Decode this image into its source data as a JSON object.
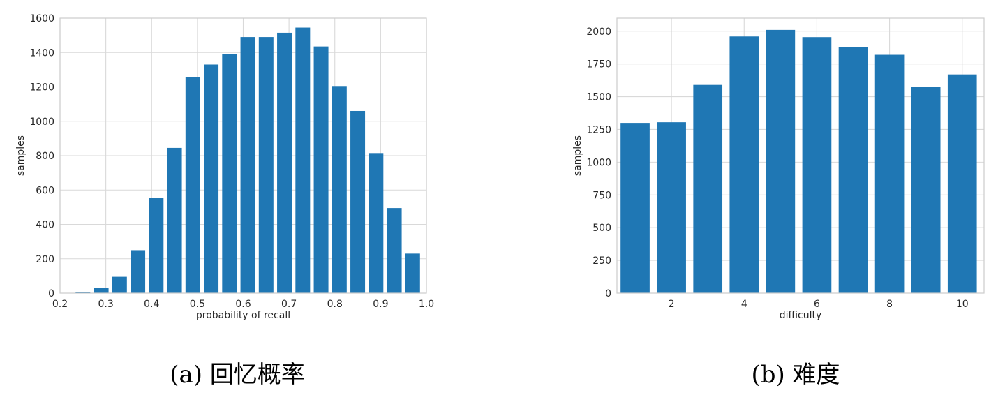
{
  "chart_data": [
    {
      "type": "bar",
      "xlabel": "probability of recall",
      "ylabel": "samples",
      "caption": "(a) 回忆概率",
      "xlim": [
        0.2,
        1.0
      ],
      "ylim": [
        0,
        1600
      ],
      "xticks": [
        "0.2",
        "0.3",
        "0.4",
        "0.5",
        "0.6",
        "0.7",
        "0.8",
        "0.9",
        "1.0"
      ],
      "yticks": [
        "0",
        "200",
        "400",
        "600",
        "800",
        "1000",
        "1200",
        "1400",
        "1600"
      ],
      "bar_width": 0.032,
      "x": [
        0.23,
        0.25,
        0.29,
        0.33,
        0.37,
        0.41,
        0.45,
        0.49,
        0.53,
        0.57,
        0.61,
        0.65,
        0.69,
        0.73,
        0.77,
        0.81,
        0.85,
        0.89,
        0.93,
        0.97
      ],
      "values": [
        2,
        5,
        30,
        95,
        250,
        555,
        845,
        1255,
        1330,
        1390,
        1490,
        1490,
        1515,
        1545,
        1435,
        1205,
        1060,
        815,
        495,
        230
      ],
      "grid": true,
      "color": "#1f77b4"
    },
    {
      "type": "bar",
      "xlabel": "difficulty",
      "ylabel": "samples",
      "caption": "(b) 难度",
      "xlim": [
        0.5,
        10.6
      ],
      "ylim": [
        0,
        2100
      ],
      "xticks": [
        "2",
        "4",
        "6",
        "8",
        "10"
      ],
      "yticks": [
        "0",
        "250",
        "500",
        "750",
        "1000",
        "1250",
        "1500",
        "1750",
        "2000"
      ],
      "bar_width": 0.8,
      "x": [
        1,
        2,
        3,
        4,
        5,
        6,
        7,
        8,
        9,
        10
      ],
      "values": [
        1300,
        1305,
        1590,
        1960,
        2010,
        1955,
        1880,
        1820,
        1575,
        1670
      ],
      "grid": true,
      "color": "#1f77b4"
    }
  ]
}
